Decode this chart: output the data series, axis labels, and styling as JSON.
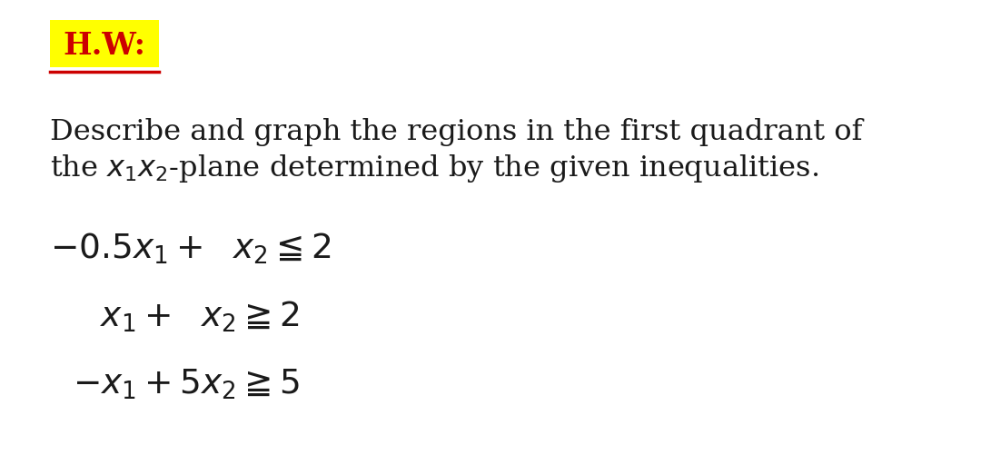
{
  "background_color": "#ffffff",
  "hw_label": "H.W:",
  "hw_bg_color": "#ffff00",
  "hw_text_color": "#cc0000",
  "hw_underline_color": "#cc0000",
  "hw_fontsize": 24,
  "desc_line1": "Describe and graph the regions in the first quadrant of",
  "desc_line2": "the $x_1x_2$-plane determined by the given inequalities.",
  "desc_fontsize": 23,
  "desc_color": "#1a1a1a",
  "ineq1": "$-0.5x_1 +\\ \\ x_2 \\leqq 2$",
  "ineq2": "$x_1 +\\ \\ x_2 \\geqq 2$",
  "ineq3": "$-x_1 + 5x_2 \\geqq 5$",
  "ineq_fontsize": 27,
  "ineq_color": "#1a1a1a"
}
